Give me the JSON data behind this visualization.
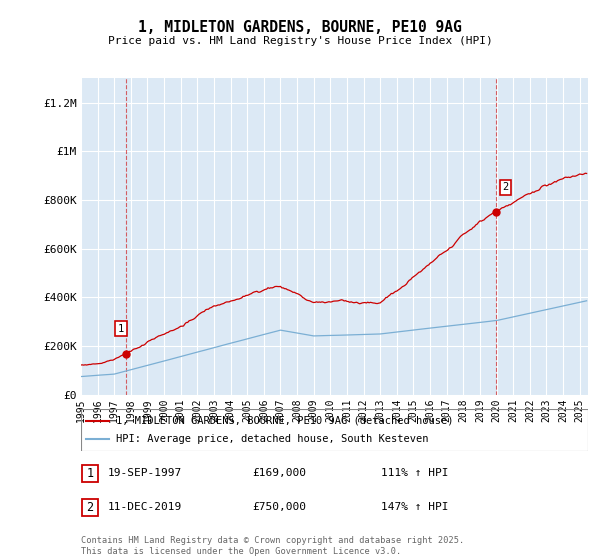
{
  "title": "1, MIDLETON GARDENS, BOURNE, PE10 9AG",
  "subtitle": "Price paid vs. HM Land Registry's House Price Index (HPI)",
  "ylabel_ticks": [
    "£0",
    "£200K",
    "£400K",
    "£600K",
    "£800K",
    "£1M",
    "£1.2M"
  ],
  "ytick_values": [
    0,
    200000,
    400000,
    600000,
    800000,
    1000000,
    1200000
  ],
  "ylim": [
    0,
    1300000
  ],
  "xlim_start": 1995.0,
  "xlim_end": 2025.5,
  "plot_bg": "#dce9f5",
  "red_color": "#cc0000",
  "blue_color": "#7bafd4",
  "marker1_date": 1997.72,
  "marker1_price": 169000,
  "marker2_date": 2019.95,
  "marker2_price": 750000,
  "legend_label_red": "1, MIDLETON GARDENS, BOURNE, PE10 9AG (detached house)",
  "legend_label_blue": "HPI: Average price, detached house, South Kesteven",
  "table_row1": [
    "1",
    "19-SEP-1997",
    "£169,000",
    "111% ↑ HPI"
  ],
  "table_row2": [
    "2",
    "11-DEC-2019",
    "£750,000",
    "147% ↑ HPI"
  ],
  "footer": "Contains HM Land Registry data © Crown copyright and database right 2025.\nThis data is licensed under the Open Government Licence v3.0.",
  "xticks": [
    1995,
    1996,
    1997,
    1998,
    1999,
    2000,
    2001,
    2002,
    2003,
    2004,
    2005,
    2006,
    2007,
    2008,
    2009,
    2010,
    2011,
    2012,
    2013,
    2014,
    2015,
    2016,
    2017,
    2018,
    2019,
    2020,
    2021,
    2022,
    2023,
    2024,
    2025
  ]
}
